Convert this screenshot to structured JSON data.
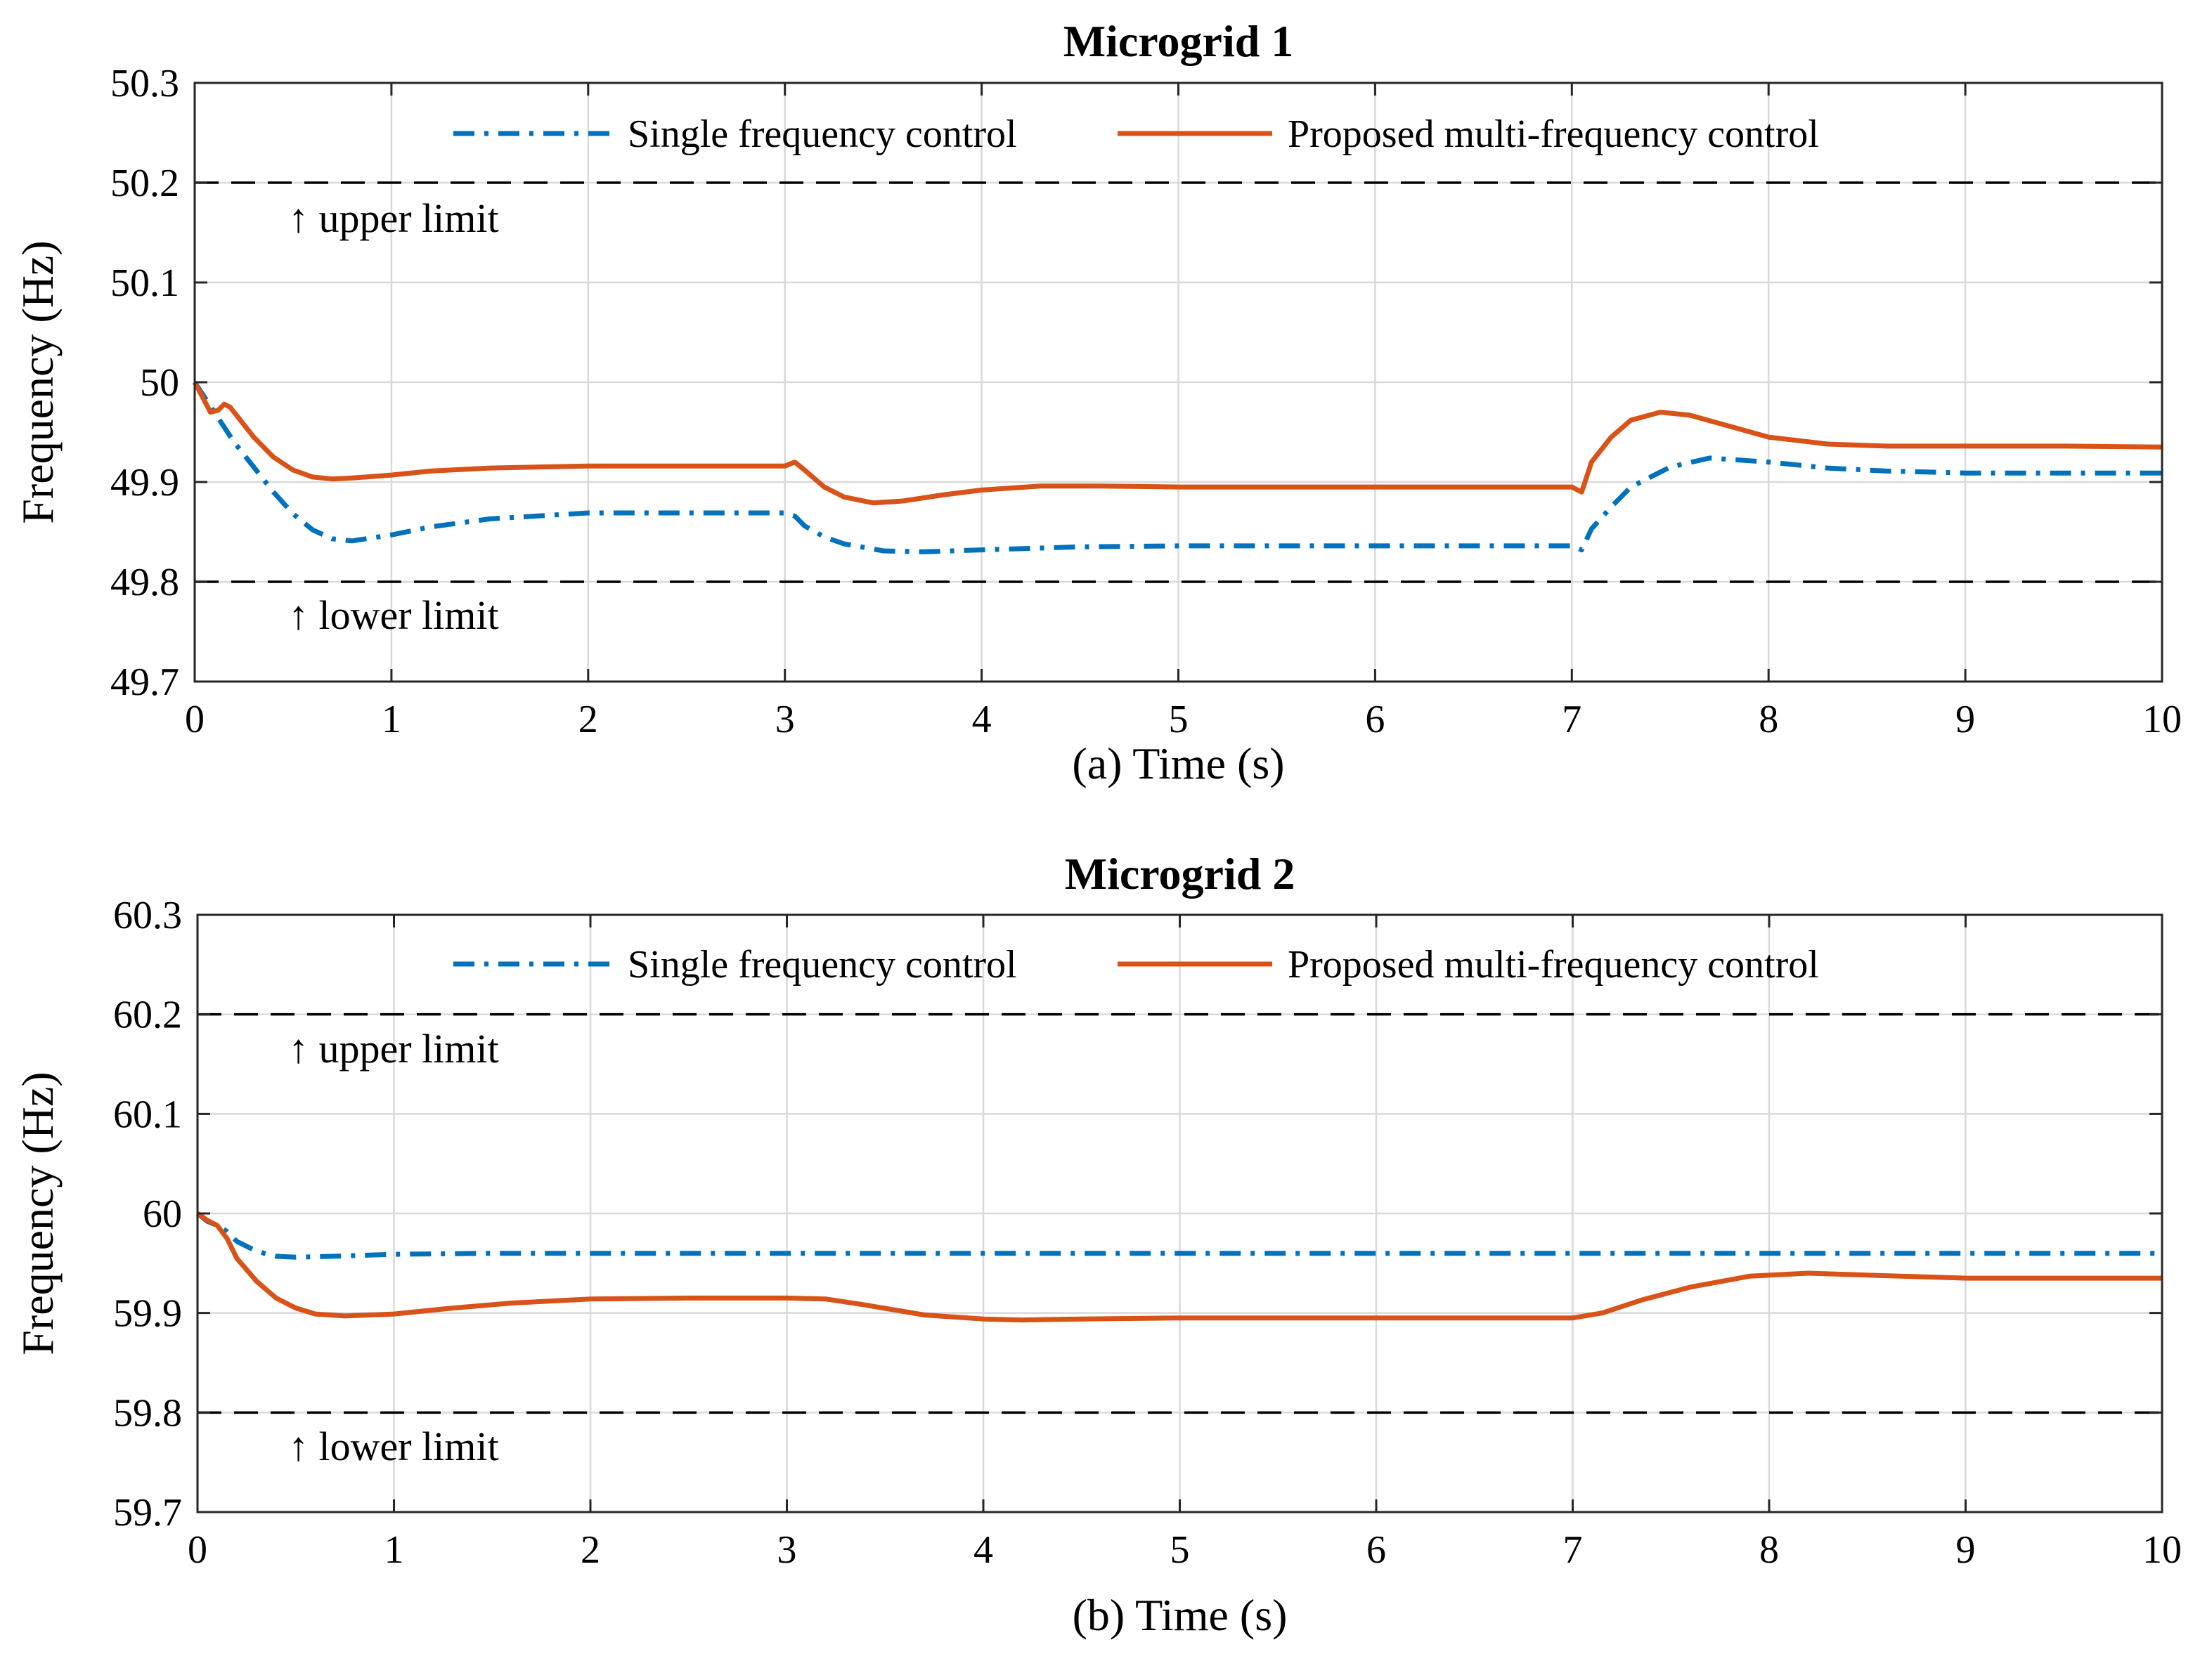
{
  "chart_data": [
    {
      "type": "line",
      "title": "Microgrid 1",
      "xlabel": "(a) Time (s)",
      "ylabel": "Frequency (Hz)",
      "xlim": [
        0,
        10
      ],
      "ylim": [
        49.7,
        50.3
      ],
      "xticks": [
        "0",
        "1",
        "2",
        "3",
        "4",
        "5",
        "6",
        "7",
        "8",
        "9",
        "10"
      ],
      "yticks": [
        "49.7",
        "49.8",
        "49.9",
        "50",
        "50.1",
        "50.2",
        "50.3"
      ],
      "grid": true,
      "legend": {
        "position": "top",
        "entries": [
          "Single frequency control",
          "Proposed multi-frequency control"
        ]
      },
      "limits": [
        {
          "value": 50.2,
          "label": "↑ upper limit"
        },
        {
          "value": 49.8,
          "label": "↑ lower limit"
        }
      ],
      "series": [
        {
          "name": "Single frequency control",
          "color": "#0072BD",
          "style": "dashdot",
          "x": [
            0,
            0.05,
            0.1,
            0.15,
            0.2,
            0.3,
            0.4,
            0.5,
            0.6,
            0.7,
            0.8,
            1.0,
            1.2,
            1.5,
            2.0,
            2.5,
            3.0,
            3.05,
            3.1,
            3.2,
            3.3,
            3.5,
            3.7,
            4.0,
            4.5,
            5.0,
            6.0,
            7.0,
            7.05,
            7.1,
            7.2,
            7.3,
            7.5,
            7.7,
            8.0,
            8.3,
            8.6,
            9.0,
            9.5,
            10.0
          ],
          "y": [
            50.0,
            49.985,
            49.97,
            49.955,
            49.94,
            49.915,
            49.89,
            49.868,
            49.852,
            49.843,
            49.841,
            49.847,
            49.855,
            49.863,
            49.869,
            49.869,
            49.869,
            49.866,
            49.856,
            49.845,
            49.838,
            49.831,
            49.83,
            49.832,
            49.835,
            49.836,
            49.836,
            49.836,
            49.832,
            49.853,
            49.875,
            49.895,
            49.915,
            49.924,
            49.92,
            49.914,
            49.911,
            49.909,
            49.909,
            49.909
          ]
        },
        {
          "name": "Proposed multi-frequency control",
          "color": "#D95319",
          "style": "solid",
          "x": [
            0,
            0.04,
            0.08,
            0.12,
            0.15,
            0.18,
            0.22,
            0.3,
            0.4,
            0.5,
            0.6,
            0.7,
            0.8,
            1.0,
            1.2,
            1.5,
            2.0,
            2.5,
            3.0,
            3.05,
            3.1,
            3.2,
            3.3,
            3.45,
            3.6,
            3.8,
            4.0,
            4.3,
            4.6,
            5.0,
            6.0,
            7.0,
            7.05,
            7.1,
            7.2,
            7.3,
            7.45,
            7.6,
            7.8,
            8.0,
            8.3,
            8.6,
            9.0,
            9.5,
            10.0
          ],
          "y": [
            50.0,
            49.985,
            49.97,
            49.972,
            49.978,
            49.975,
            49.965,
            49.945,
            49.925,
            49.912,
            49.905,
            49.903,
            49.904,
            49.907,
            49.911,
            49.914,
            49.916,
            49.916,
            49.916,
            49.92,
            49.912,
            49.895,
            49.885,
            49.879,
            49.881,
            49.887,
            49.892,
            49.896,
            49.896,
            49.895,
            49.895,
            49.895,
            49.89,
            49.92,
            49.945,
            49.962,
            49.97,
            49.967,
            49.956,
            49.945,
            49.938,
            49.936,
            49.936,
            49.936,
            49.935
          ]
        }
      ]
    },
    {
      "type": "line",
      "title": "Microgrid 2",
      "xlabel": "(b) Time (s)",
      "ylabel": "Frequency (Hz)",
      "xlim": [
        0,
        10
      ],
      "ylim": [
        59.7,
        60.3
      ],
      "xticks": [
        "0",
        "1",
        "2",
        "3",
        "4",
        "5",
        "6",
        "7",
        "8",
        "9",
        "10"
      ],
      "yticks": [
        "59.7",
        "59.8",
        "59.9",
        "60",
        "60.1",
        "60.2",
        "60.3"
      ],
      "grid": true,
      "legend": {
        "position": "top",
        "entries": [
          "Single frequency control",
          "Proposed multi-frequency control"
        ]
      },
      "limits": [
        {
          "value": 60.2,
          "label": "↑ upper limit"
        },
        {
          "value": 59.8,
          "label": "↑ lower limit"
        }
      ],
      "series": [
        {
          "name": "Single frequency control",
          "color": "#0072BD",
          "style": "dashdot",
          "x": [
            0,
            0.05,
            0.1,
            0.15,
            0.2,
            0.3,
            0.4,
            0.5,
            0.7,
            1.0,
            1.5,
            2.0,
            3.0,
            4.0,
            5.0,
            6.0,
            7.0,
            8.0,
            9.0,
            10.0
          ],
          "y": [
            60.0,
            59.992,
            59.988,
            59.982,
            59.972,
            59.962,
            59.957,
            59.956,
            59.957,
            59.959,
            59.96,
            59.96,
            59.96,
            59.96,
            59.96,
            59.96,
            59.96,
            59.96,
            59.96,
            59.96
          ]
        },
        {
          "name": "Proposed multi-frequency control",
          "color": "#D95319",
          "style": "solid",
          "x": [
            0,
            0.05,
            0.1,
            0.15,
            0.2,
            0.3,
            0.4,
            0.5,
            0.6,
            0.75,
            1.0,
            1.3,
            1.6,
            2.0,
            2.5,
            3.0,
            3.2,
            3.4,
            3.7,
            4.0,
            4.2,
            4.5,
            5.0,
            6.0,
            7.0,
            7.15,
            7.35,
            7.6,
            7.9,
            8.2,
            8.5,
            9.0,
            9.5,
            10.0
          ],
          "y": [
            60.0,
            59.993,
            59.988,
            59.975,
            59.955,
            59.932,
            59.915,
            59.905,
            59.899,
            59.897,
            59.899,
            59.905,
            59.91,
            59.914,
            59.915,
            59.915,
            59.914,
            59.908,
            59.898,
            59.894,
            59.893,
            59.894,
            59.895,
            59.895,
            59.895,
            59.9,
            59.913,
            59.926,
            59.937,
            59.94,
            59.938,
            59.935,
            59.935,
            59.935
          ]
        }
      ]
    }
  ]
}
